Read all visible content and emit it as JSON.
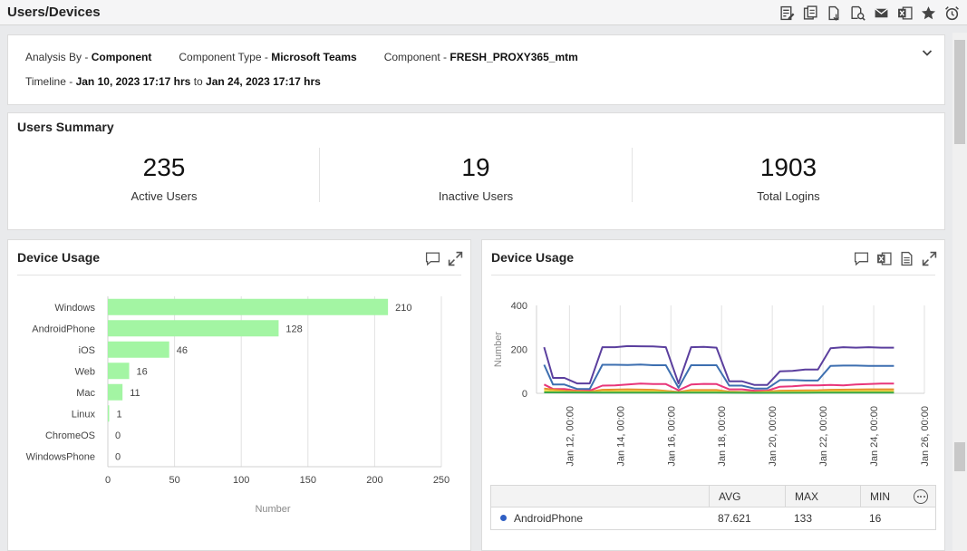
{
  "page": {
    "title": "Users/Devices"
  },
  "toolbar": {
    "icons": [
      "report-icon",
      "compare-icon",
      "export-icon",
      "search-doc-icon",
      "email-icon",
      "excel-icon",
      "favorite-star-icon",
      "alarm-clock-icon"
    ]
  },
  "filters": {
    "analysis_by_label": "Analysis By -",
    "analysis_by_value": "Component",
    "component_type_label": "Component Type -",
    "component_type_value": "Microsoft Teams",
    "component_label": "Component -",
    "component_value": "FRESH_PROXY365_mtm",
    "timeline_label": "Timeline -",
    "timeline_start": "Jan 10, 2023 17:17 hrs",
    "timeline_to": "to",
    "timeline_end": "Jan 24, 2023 17:17 hrs"
  },
  "summary": {
    "title": "Users Summary",
    "kpis": [
      {
        "value": "235",
        "label": "Active Users"
      },
      {
        "value": "19",
        "label": "Inactive Users"
      },
      {
        "value": "1903",
        "label": "Total Logins"
      }
    ]
  },
  "device_usage_bar": {
    "title": "Device Usage",
    "icons": [
      "comment-icon",
      "expand-icon"
    ]
  },
  "device_usage_line": {
    "title": "Device Usage",
    "icons": [
      "comment-icon",
      "excel-icon",
      "document-icon",
      "expand-icon"
    ],
    "table": {
      "headers": [
        "",
        "AVG",
        "MAX",
        "MIN"
      ],
      "rows": [
        {
          "name": "AndroidPhone",
          "color": "#2f5fc4",
          "avg": "87.621",
          "max": "133",
          "min": "16"
        }
      ]
    }
  },
  "chart_data": [
    {
      "type": "bar",
      "orientation": "horizontal",
      "categories": [
        "Windows",
        "AndroidPhone",
        "iOS",
        "Web",
        "Mac",
        "Linux",
        "ChromeOS",
        "WindowsPhone"
      ],
      "values": [
        210,
        128,
        46,
        16,
        11,
        1,
        0,
        0
      ],
      "xlabel": "Number",
      "xlim": [
        0,
        250
      ],
      "xticks": [
        0,
        50,
        100,
        150,
        200,
        250
      ],
      "bar_color": "#a3f5a3",
      "grid": true
    },
    {
      "type": "line",
      "ylabel": "Number",
      "ylim": [
        0,
        400
      ],
      "yticks": [
        0,
        200,
        400
      ],
      "x_ticks": [
        "Jan 12, 00:00",
        "Jan 14, 00:00",
        "Jan 16, 00:00",
        "Jan 18, 00:00",
        "Jan 20, 00:00",
        "Jan 22, 00:00",
        "Jan 24, 00:00",
        "Jan 26, 00:00"
      ],
      "x_range_days": [
        10.7,
        26
      ],
      "grid": true,
      "series": [
        {
          "color": "#5b3f9e",
          "points": [
            [
              11.0,
              210
            ],
            [
              11.35,
              70
            ],
            [
              11.8,
              70
            ],
            [
              12.3,
              45
            ],
            [
              12.8,
              45
            ],
            [
              13.3,
              210
            ],
            [
              13.8,
              210
            ],
            [
              14.3,
              215
            ],
            [
              14.8,
              214
            ],
            [
              15.3,
              213
            ],
            [
              15.8,
              210
            ],
            [
              16.3,
              45
            ],
            [
              16.8,
              210
            ],
            [
              17.3,
              211
            ],
            [
              17.8,
              208
            ],
            [
              18.3,
              55
            ],
            [
              18.8,
              55
            ],
            [
              19.3,
              38
            ],
            [
              19.8,
              38
            ],
            [
              20.3,
              100
            ],
            [
              20.8,
              102
            ],
            [
              21.3,
              108
            ],
            [
              21.8,
              108
            ],
            [
              22.3,
              205
            ],
            [
              22.8,
              210
            ],
            [
              23.3,
              208
            ],
            [
              23.8,
              210
            ],
            [
              24.3,
              208
            ],
            [
              24.8,
              208
            ]
          ]
        },
        {
          "color": "#3d6fb0",
          "points": [
            [
              11.0,
              130
            ],
            [
              11.35,
              40
            ],
            [
              11.8,
              40
            ],
            [
              12.3,
              20
            ],
            [
              12.8,
              20
            ],
            [
              13.3,
              130
            ],
            [
              13.8,
              130
            ],
            [
              14.3,
              129
            ],
            [
              14.8,
              131
            ],
            [
              15.3,
              128
            ],
            [
              15.8,
              128
            ],
            [
              16.3,
              25
            ],
            [
              16.8,
              128
            ],
            [
              17.3,
              128
            ],
            [
              17.8,
              128
            ],
            [
              18.3,
              35
            ],
            [
              18.8,
              35
            ],
            [
              19.3,
              22
            ],
            [
              19.8,
              22
            ],
            [
              20.3,
              60
            ],
            [
              20.8,
              60
            ],
            [
              21.3,
              58
            ],
            [
              21.8,
              58
            ],
            [
              22.3,
              125
            ],
            [
              22.8,
              126
            ],
            [
              23.3,
              126
            ],
            [
              23.8,
              125
            ],
            [
              24.3,
              125
            ],
            [
              24.8,
              125
            ]
          ]
        },
        {
          "color": "#e8367a",
          "points": [
            [
              11.0,
              40
            ],
            [
              11.35,
              20
            ],
            [
              11.8,
              20
            ],
            [
              12.3,
              12
            ],
            [
              12.8,
              12
            ],
            [
              13.3,
              35
            ],
            [
              13.8,
              36
            ],
            [
              14.3,
              40
            ],
            [
              14.8,
              44
            ],
            [
              15.3,
              42
            ],
            [
              15.8,
              42
            ],
            [
              16.3,
              14
            ],
            [
              16.8,
              40
            ],
            [
              17.3,
              43
            ],
            [
              17.8,
              42
            ],
            [
              18.3,
              18
            ],
            [
              18.8,
              18
            ],
            [
              19.3,
              12
            ],
            [
              19.8,
              12
            ],
            [
              20.3,
              30
            ],
            [
              20.8,
              32
            ],
            [
              21.3,
              36
            ],
            [
              21.8,
              36
            ],
            [
              22.3,
              38
            ],
            [
              22.8,
              36
            ],
            [
              23.3,
              40
            ],
            [
              23.8,
              42
            ],
            [
              24.3,
              44
            ],
            [
              24.8,
              44
            ]
          ]
        },
        {
          "color": "#e58f2b",
          "points": [
            [
              11.0,
              22
            ],
            [
              11.8,
              12
            ],
            [
              12.8,
              8
            ],
            [
              13.3,
              16
            ],
            [
              14.3,
              18
            ],
            [
              15.3,
              16
            ],
            [
              16.3,
              6
            ],
            [
              16.8,
              15
            ],
            [
              17.8,
              15
            ],
            [
              18.3,
              8
            ],
            [
              19.3,
              5
            ],
            [
              20.3,
              12
            ],
            [
              21.8,
              14
            ],
            [
              22.3,
              16
            ],
            [
              23.8,
              18
            ],
            [
              24.8,
              18
            ]
          ]
        },
        {
          "color": "#e8d43a",
          "points": [
            [
              11.0,
              12
            ],
            [
              11.8,
              6
            ],
            [
              12.8,
              4
            ],
            [
              13.3,
              8
            ],
            [
              14.3,
              10
            ],
            [
              15.3,
              9
            ],
            [
              16.3,
              3
            ],
            [
              16.8,
              8
            ],
            [
              17.8,
              8
            ],
            [
              18.3,
              4
            ],
            [
              19.3,
              3
            ],
            [
              20.3,
              6
            ],
            [
              21.8,
              8
            ],
            [
              22.3,
              9
            ],
            [
              23.8,
              10
            ],
            [
              24.8,
              10
            ]
          ]
        },
        {
          "color": "#3aa84a",
          "points": [
            [
              11.0,
              4
            ],
            [
              13.3,
              3
            ],
            [
              15.3,
              3
            ],
            [
              17.8,
              3
            ],
            [
              19.3,
              2
            ],
            [
              21.8,
              3
            ],
            [
              24.8,
              3
            ]
          ]
        }
      ]
    }
  ]
}
